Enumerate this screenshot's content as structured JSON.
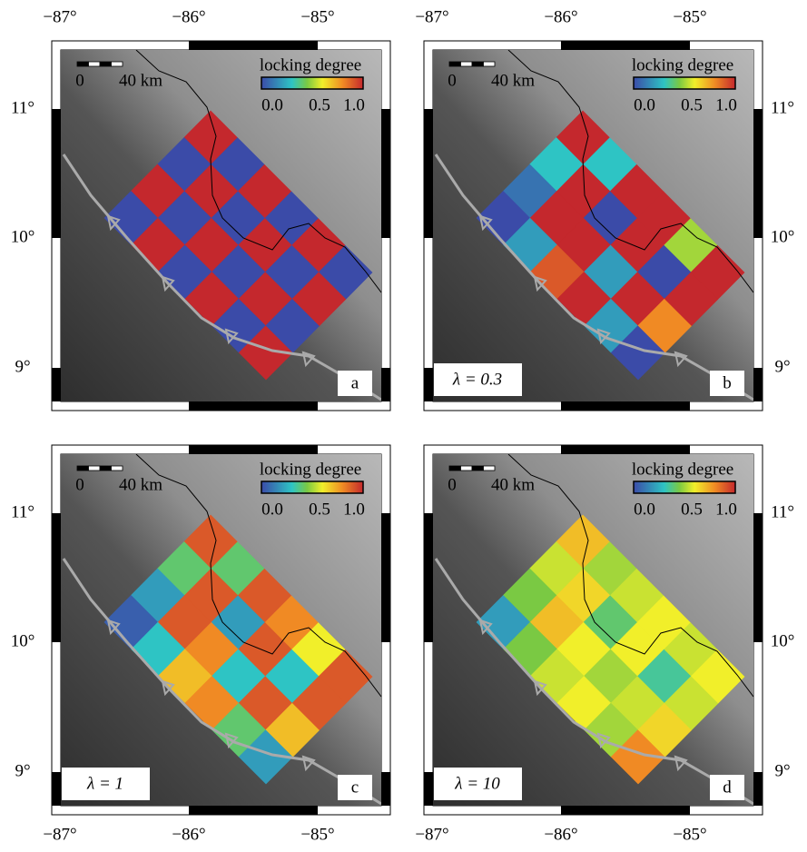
{
  "axes": {
    "longitude_labels": [
      "−87°",
      "−86°",
      "−85°"
    ],
    "latitude_labels": [
      "11°",
      "10°",
      "9°"
    ]
  },
  "panels": [
    {
      "letter": "a",
      "colorbar": {
        "title": "locking degree",
        "ticks": [
          "0.0",
          "0.5",
          "1.0"
        ]
      },
      "scale_bar": {
        "start": "0",
        "end": "40 km"
      },
      "locking_grid": [
        [
          1,
          0,
          1,
          0,
          1,
          0
        ],
        [
          0,
          1,
          0,
          1,
          0,
          1
        ],
        [
          1,
          0,
          1,
          0,
          1,
          0
        ],
        [
          0,
          1,
          0,
          1,
          0,
          1
        ]
      ]
    },
    {
      "letter": "b",
      "lambda_label": "λ = 0.3",
      "colorbar": {
        "title": "locking degree",
        "ticks": [
          "0.0",
          "0.5",
          "1.0"
        ]
      },
      "scale_bar": {
        "start": "0",
        "end": "40 km"
      },
      "locking_grid": [
        [
          1,
          0.3,
          1,
          1,
          0.5,
          1
        ],
        [
          0.3,
          1,
          0,
          1,
          0,
          1
        ],
        [
          0.1,
          1,
          1,
          0.2,
          1,
          0.8
        ],
        [
          0,
          0.2,
          0.9,
          1,
          0.2,
          0
        ]
      ]
    },
    {
      "letter": "c",
      "lambda_label": "λ = 1",
      "colorbar": {
        "title": "locking degree",
        "ticks": [
          "0.0",
          "0.5",
          "1.0"
        ]
      },
      "scale_bar": {
        "start": "0",
        "end": "40 km"
      },
      "locking_grid": [
        [
          0.9,
          0.4,
          0.9,
          0.8,
          0.6,
          0.9
        ],
        [
          0.4,
          0.9,
          0.2,
          0.9,
          0.3,
          0.9
        ],
        [
          0.2,
          0.9,
          0.8,
          0.3,
          0.9,
          0.7
        ],
        [
          0.05,
          0.3,
          0.7,
          0.8,
          0.4,
          0.2
        ]
      ]
    },
    {
      "letter": "d",
      "lambda_label": "λ = 10",
      "colorbar": {
        "title": "locking degree",
        "ticks": [
          "0.0",
          "0.5",
          "1.0"
        ]
      },
      "scale_bar": {
        "start": "0",
        "end": "40 km"
      },
      "locking_grid": [
        [
          0.7,
          0.5,
          0.55,
          0.6,
          0.55,
          0.6
        ],
        [
          0.55,
          0.65,
          0.4,
          0.6,
          0.35,
          0.55
        ],
        [
          0.45,
          0.7,
          0.6,
          0.5,
          0.55,
          0.65
        ],
        [
          0.2,
          0.45,
          0.55,
          0.6,
          0.5,
          0.8
        ]
      ]
    }
  ]
}
